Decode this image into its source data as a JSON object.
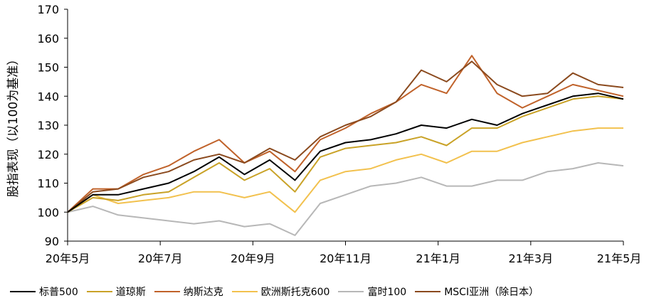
{
  "chart_data": {
    "type": "line",
    "title": "",
    "ylabel": "股指表现（以100为基准）",
    "xlabel": "",
    "ylim": [
      90,
      170
    ],
    "yticks": [
      90,
      100,
      110,
      120,
      130,
      140,
      150,
      160,
      170
    ],
    "xtick_labels": [
      "20年5月",
      "20年7月",
      "20年9月",
      "20年11月",
      "21年1月",
      "21年3月",
      "21年5月"
    ],
    "legend_position": "bottom",
    "grid": false,
    "x": [
      "20年5月初",
      "20年5月末",
      "20年6月中",
      "20年7月初",
      "20年7月末",
      "20年8月中",
      "20年9月初",
      "20年9月末",
      "20年10月中",
      "20年10月末",
      "20年11月初",
      "20年11月中",
      "20年12月初",
      "20年12月末",
      "21年1月中",
      "21年1月末",
      "21年2月中",
      "21年2月末",
      "21年3月中",
      "21年3月末",
      "21年4月中",
      "21年4月末",
      "21年5月初"
    ],
    "series": [
      {
        "name": "标普500",
        "color": "#000000",
        "values": [
          100,
          106,
          106,
          108,
          110,
          114,
          119,
          113,
          118,
          111,
          121,
          124,
          125,
          127,
          130,
          129,
          132,
          130,
          134,
          137,
          140,
          141,
          139
        ]
      },
      {
        "name": "道琼斯",
        "color": "#C9A227",
        "values": [
          100,
          105,
          104,
          106,
          107,
          112,
          117,
          111,
          115,
          107,
          119,
          122,
          123,
          124,
          126,
          123,
          129,
          129,
          133,
          136,
          139,
          140,
          139
        ]
      },
      {
        "name": "纳斯达克",
        "color": "#C0622A",
        "values": [
          100,
          108,
          108,
          113,
          116,
          121,
          125,
          117,
          121,
          114,
          125,
          129,
          134,
          138,
          144,
          141,
          154,
          141,
          136,
          140,
          144,
          142,
          140
        ]
      },
      {
        "name": "欧洲斯托克600",
        "color": "#F2C14E",
        "values": [
          100,
          106,
          103,
          104,
          105,
          107,
          107,
          105,
          107,
          100,
          111,
          114,
          115,
          118,
          120,
          117,
          121,
          121,
          124,
          126,
          128,
          129,
          129
        ]
      },
      {
        "name": "富时100",
        "color": "#B7B7B7",
        "values": [
          100,
          102,
          99,
          98,
          97,
          96,
          97,
          95,
          96,
          92,
          103,
          106,
          109,
          110,
          112,
          109,
          109,
          111,
          111,
          114,
          115,
          117,
          116
        ]
      },
      {
        "name": "MSCI亚洲（除日本）",
        "color": "#8B4A1E",
        "values": [
          100,
          107,
          108,
          112,
          114,
          118,
          120,
          117,
          122,
          118,
          126,
          130,
          133,
          138,
          149,
          145,
          152,
          144,
          140,
          141,
          148,
          144,
          143
        ]
      }
    ]
  }
}
